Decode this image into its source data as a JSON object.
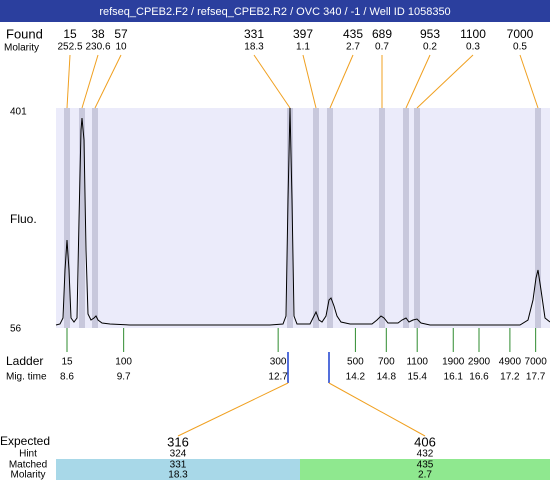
{
  "title": "refseq_CPEB2.F2 / refseq_CPEB2.R2 / OVC 340 / -1 / Well ID 1058350",
  "found": {
    "label": "Found",
    "sizes": [
      15,
      38,
      57,
      331,
      397,
      435,
      689,
      953,
      1100,
      7000
    ]
  },
  "molarity": {
    "label": "Molarity",
    "values": [
      252.5,
      230.6,
      10,
      18.3,
      1.1,
      2.7,
      0.7,
      0.2,
      0.3,
      0.5
    ]
  },
  "y_axis": {
    "label": "Fluo.",
    "max": 401,
    "min": 56
  },
  "ladder": {
    "label": "Ladder",
    "sizes": [
      15,
      100,
      300,
      500,
      700,
      1100,
      1900,
      2900,
      4900,
      7000
    ]
  },
  "mig_time": {
    "label": "Mig. time",
    "values": [
      8.6,
      9.7,
      12.7,
      14.2,
      14.8,
      15.4,
      16.1,
      16.6,
      17.2,
      17.7
    ]
  },
  "expected": {
    "labels": {
      "expected": "Expected",
      "hint": "Hint",
      "matched": "Matched",
      "molarity": "Molarity"
    },
    "groups": [
      {
        "expected": 316,
        "hint": 324,
        "matched": 331,
        "molarity": 18.3
      },
      {
        "expected": 406,
        "hint": 432,
        "matched": 435,
        "molarity": 2.7
      }
    ]
  }
}
